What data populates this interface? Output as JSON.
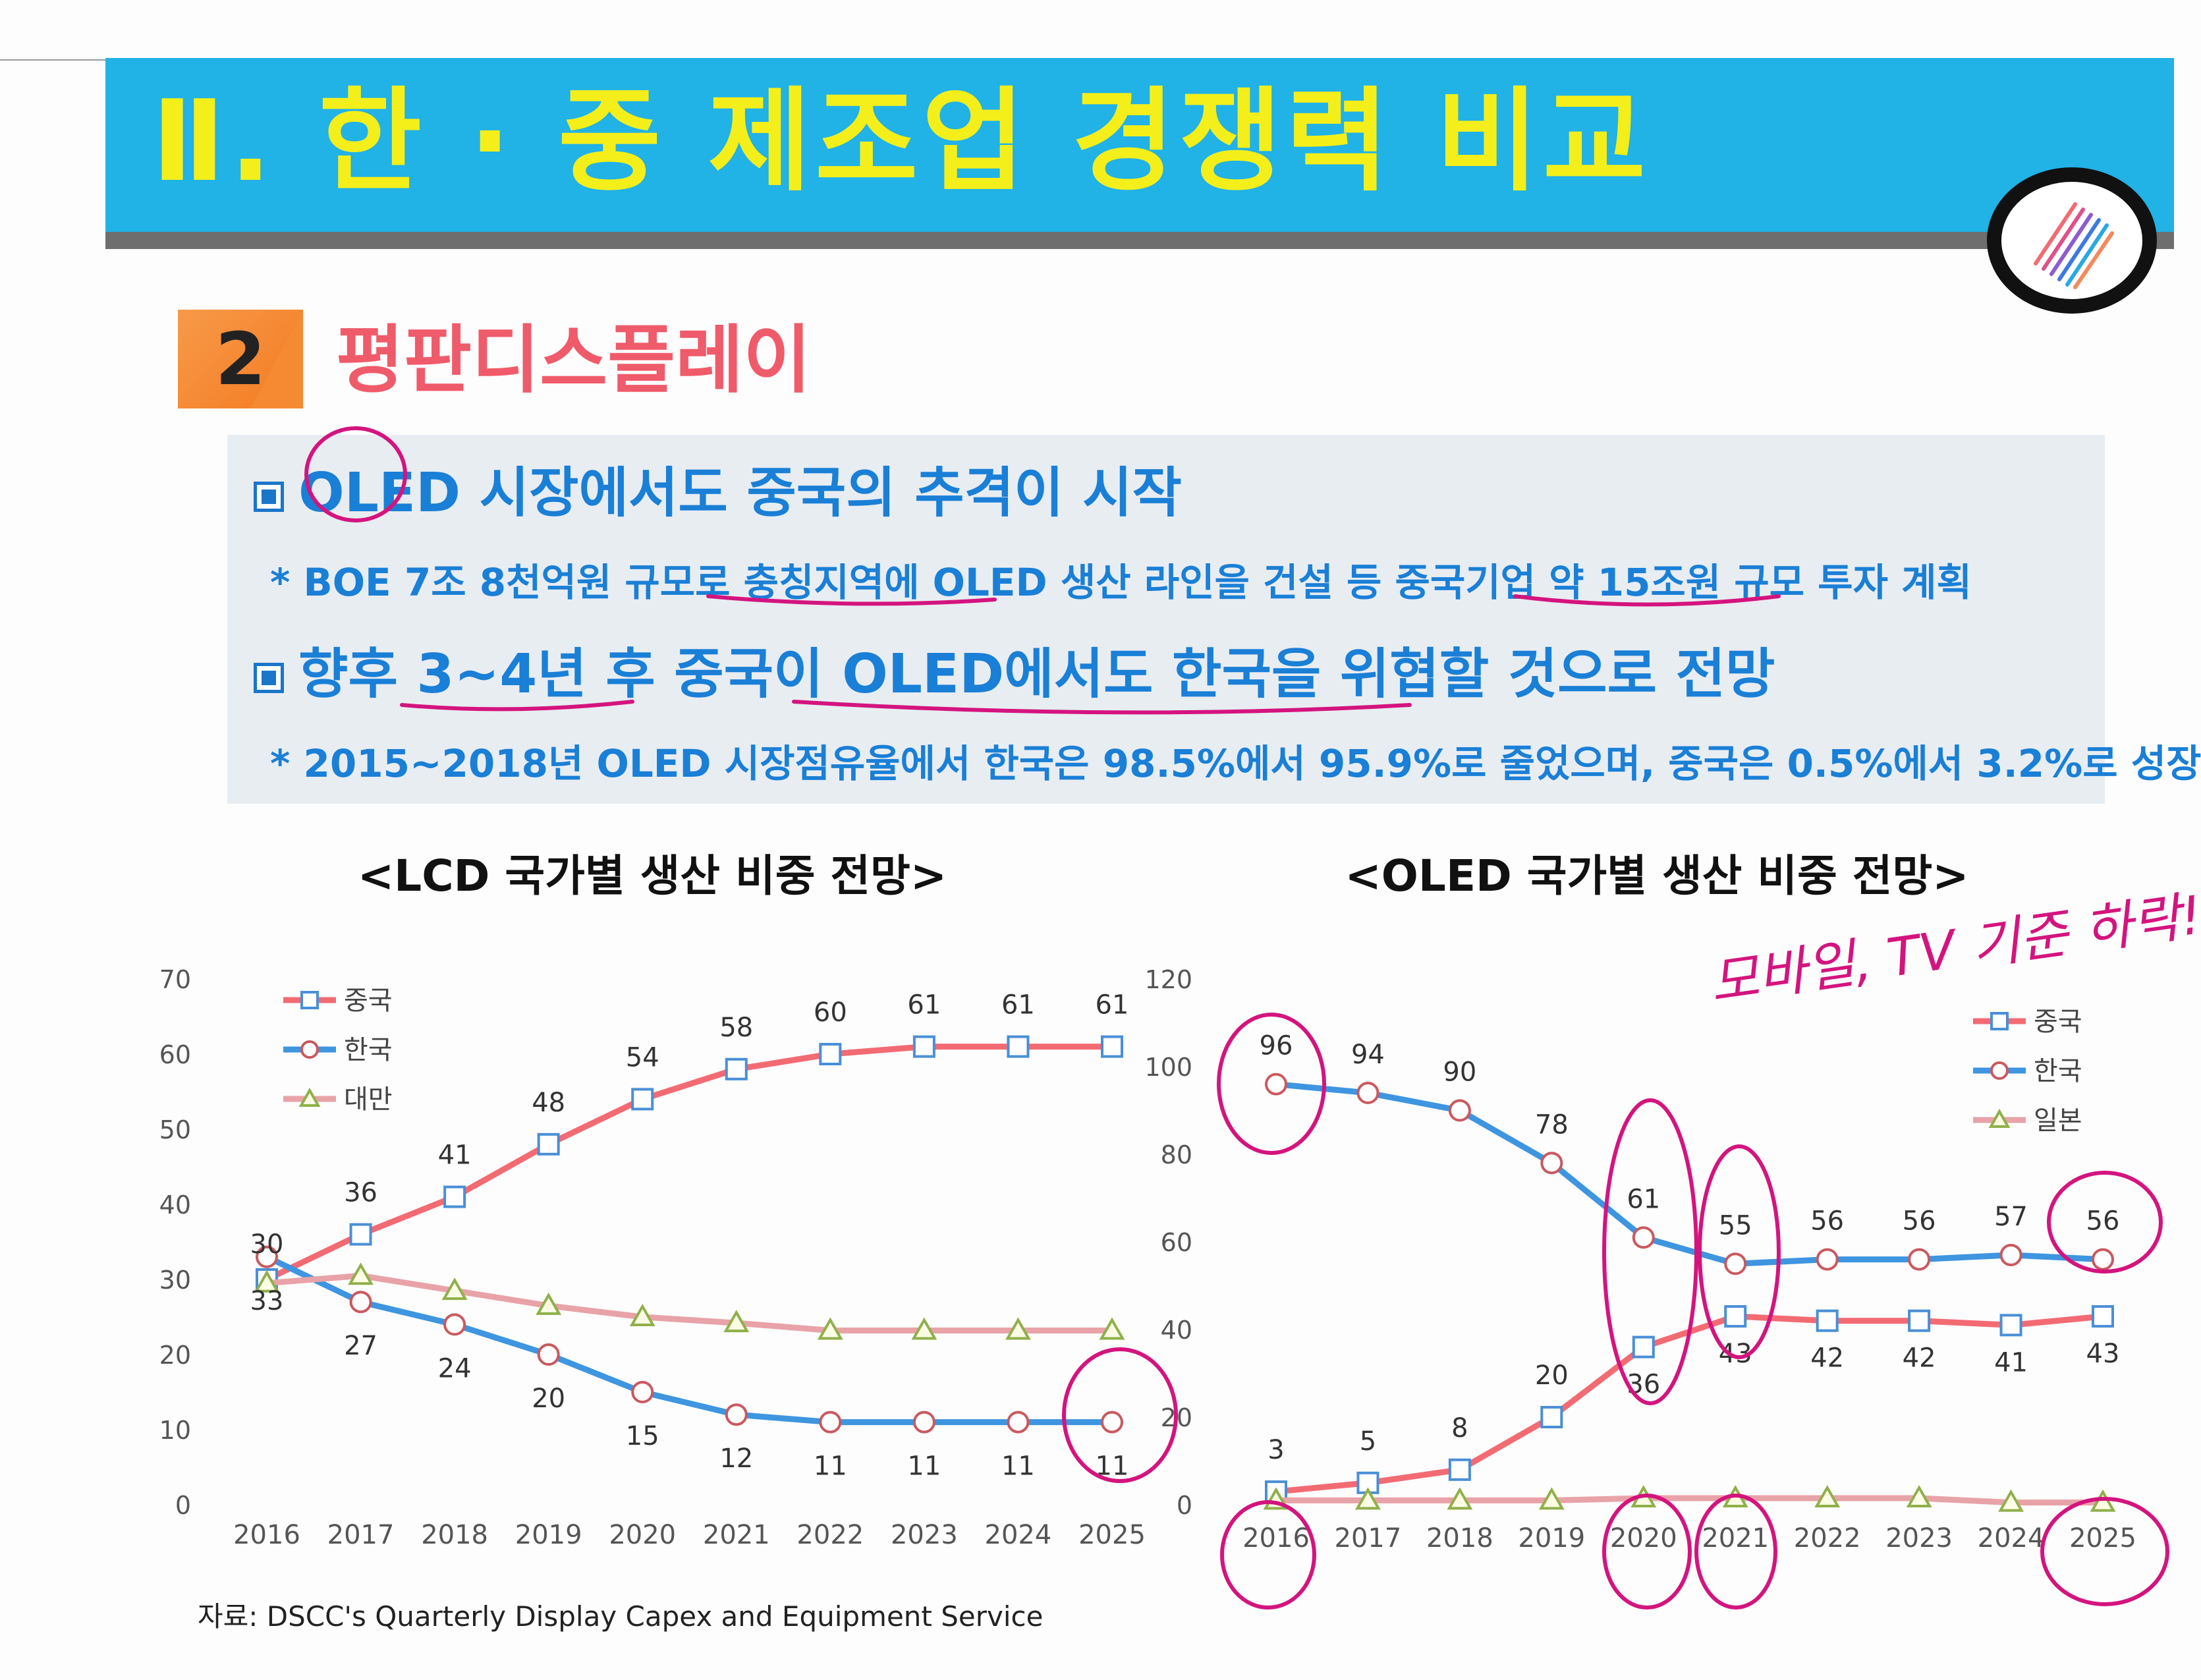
{
  "header": {
    "title": "Ⅱ. 한 · 중 제조업 경쟁력 비교"
  },
  "section": {
    "number": "2",
    "title": "평판디스플레이"
  },
  "bullets": [
    {
      "main": "OLED 시장에서도 중국의 추격이 시작",
      "sub": "* BOE 7조 8천억원 규모로 충칭지역에 OLED 생산 라인을 건설 등 중국기업 약 15조원 규모 투자 계획"
    },
    {
      "main": "향후 3~4년 후 중국이 OLED에서도 한국을 위협할 것으로 전망",
      "sub": "* 2015~2018년 OLED 시장점유율에서 한국은 98.5%에서 95.9%로 줄었으며, 중국은 0.5%에서 3.2%로 성장"
    }
  ],
  "source": "자료: DSCC's Quarterly Display Capex and Equipment Service",
  "annotations": {
    "handwritten": "모바일, TV 기준 하락!"
  },
  "colors": {
    "banner": "#21b2e6",
    "banner_text": "#f4ef1a",
    "china": "#f26b73",
    "korea": "#3e95e0",
    "third": "#e8a3a8",
    "ink": "#d4147e"
  },
  "chart_data": [
    {
      "type": "line",
      "title": "<LCD 국가별 생산 비중 전망>",
      "categories": [
        "2016",
        "2017",
        "2018",
        "2019",
        "2020",
        "2021",
        "2022",
        "2023",
        "2024",
        "2025"
      ],
      "ylim": [
        0,
        70
      ],
      "yticks": [
        "0",
        "10",
        "20",
        "30",
        "40",
        "50",
        "60",
        "70"
      ],
      "series": [
        {
          "name": "중국",
          "marker": "square",
          "color": "#f26b73",
          "values": [
            30,
            36,
            41,
            48,
            54,
            58,
            60,
            61,
            61,
            61
          ]
        },
        {
          "name": "한국",
          "marker": "circle",
          "color": "#3e95e0",
          "values": [
            33,
            27,
            24,
            20,
            15,
            12,
            11,
            11,
            11,
            11
          ]
        },
        {
          "name": "대만",
          "marker": "triangle",
          "color": "#e8a3a8",
          "values": [
            29.5,
            30.5,
            28.5,
            26.5,
            25,
            24.2,
            23.2,
            23.2,
            23.2,
            23.2
          ]
        }
      ],
      "labels": {
        "중국": [
          "30",
          "36",
          "41",
          "48",
          "54",
          "58",
          "60",
          "61",
          "61",
          "61"
        ],
        "한국": [
          "33",
          "27",
          "24",
          "20",
          "15",
          "12",
          "11",
          "11",
          "11",
          "11"
        ]
      }
    },
    {
      "type": "line",
      "title": "<OLED 국가별 생산 비중 전망>",
      "categories": [
        "2016",
        "2017",
        "2018",
        "2019",
        "2020",
        "2021",
        "2022",
        "2023",
        "2024",
        "2025"
      ],
      "ylim": [
        0,
        120
      ],
      "yticks": [
        "0",
        "20",
        "40",
        "60",
        "80",
        "100",
        "120"
      ],
      "series": [
        {
          "name": "중국",
          "marker": "square",
          "color": "#f26b73",
          "values": [
            3,
            5,
            8,
            20,
            36,
            43,
            42,
            42,
            41,
            43
          ]
        },
        {
          "name": "한국",
          "marker": "circle",
          "color": "#3e95e0",
          "values": [
            96,
            94,
            90,
            78,
            61,
            55,
            56,
            56,
            57,
            56
          ]
        },
        {
          "name": "일본",
          "marker": "triangle",
          "color": "#e8a3a8",
          "values": [
            1,
            1,
            1,
            1,
            1.5,
            1.5,
            1.5,
            1.5,
            0.5,
            0.5
          ]
        }
      ],
      "labels": {
        "중국": [
          "3",
          "5",
          "8",
          "20",
          "36",
          "43",
          "42",
          "42",
          "41",
          "43"
        ],
        "한국": [
          "96",
          "94",
          "90",
          "78",
          "61",
          "55",
          "56",
          "56",
          "57",
          "56"
        ]
      }
    }
  ]
}
